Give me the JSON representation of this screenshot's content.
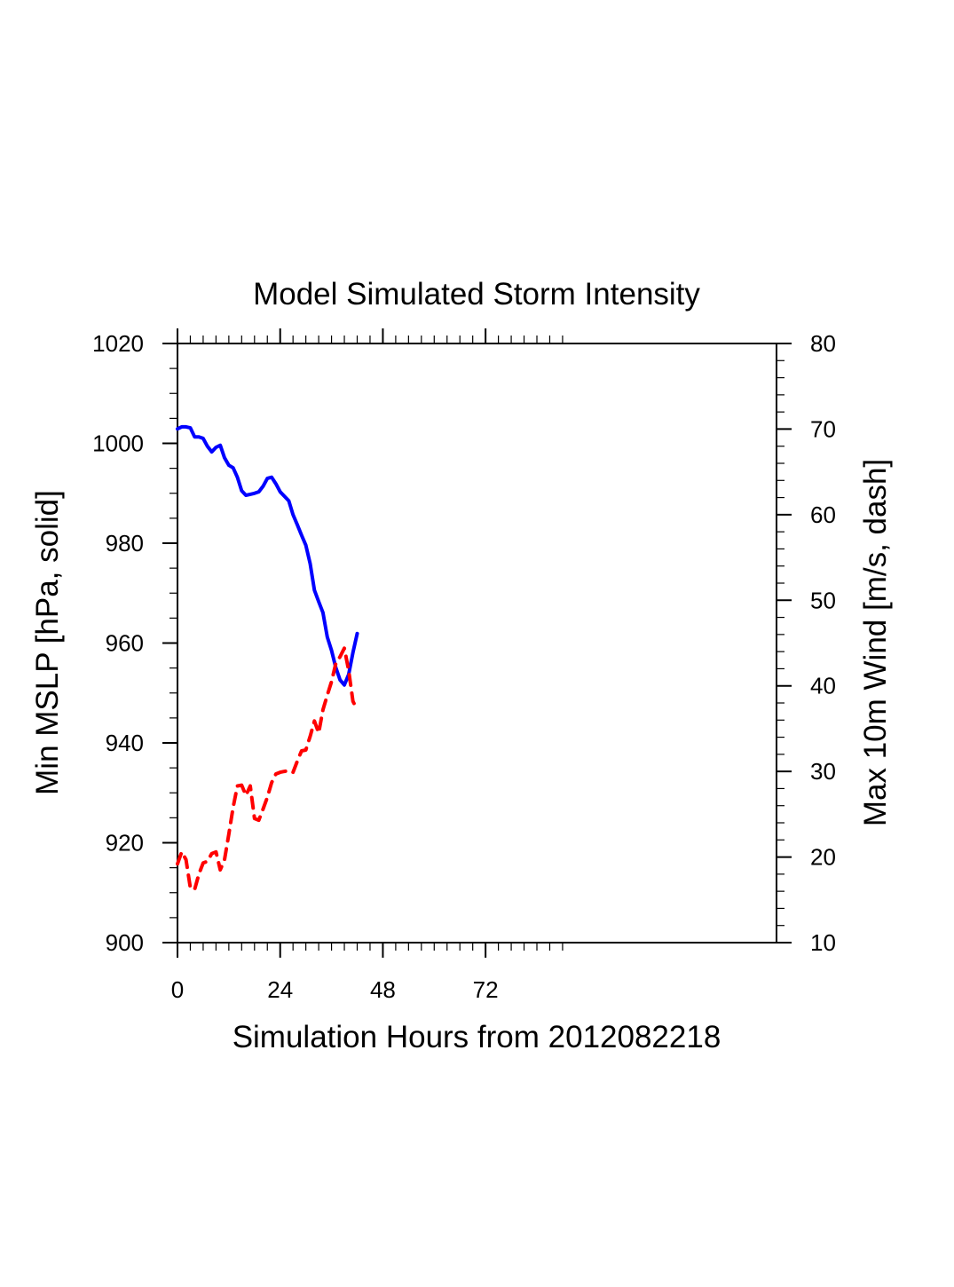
{
  "chart_data": {
    "type": "line",
    "title": "Model Simulated Storm Intensity",
    "xlabel": "Simulation Hours from 2012082218",
    "ylabel_left": "Min MSLP  [hPa, solid]",
    "ylabel_right": "Max 10m Wind  [m/s, dash]",
    "xlim": [
      0,
      140
    ],
    "ylim_left": [
      900,
      1020
    ],
    "ylim_right": [
      10,
      80
    ],
    "x_major_ticks": [
      0,
      24,
      48,
      72
    ],
    "x_tick_labels": [
      "0",
      "24",
      "48",
      "72"
    ],
    "x_minor_step": 3,
    "x_minor_max": 90,
    "y_left_ticks": [
      900,
      920,
      940,
      960,
      980,
      1000,
      1020
    ],
    "y_left_tick_labels": [
      "900",
      "920",
      "940",
      "960",
      "980",
      "1000",
      "1020"
    ],
    "y_left_minor_step": 5,
    "y_right_ticks": [
      10,
      20,
      30,
      40,
      50,
      60,
      70,
      80
    ],
    "y_right_tick_labels": [
      "10",
      "20",
      "30",
      "40",
      "50",
      "60",
      "70",
      "80"
    ],
    "y_right_minor_step": 2,
    "grid": false,
    "legend": "none",
    "x": [
      0,
      1,
      2,
      3,
      4,
      5,
      6,
      7,
      8,
      9,
      10,
      11,
      12,
      13,
      14,
      15,
      16,
      17,
      18,
      19,
      20,
      21,
      22,
      23,
      24,
      25,
      26,
      27,
      28,
      29,
      30,
      31,
      32,
      33,
      34,
      35,
      36,
      37,
      38,
      39,
      40,
      41,
      42
    ],
    "series": [
      {
        "name": "Min MSLP",
        "axis": "left",
        "style": "solid",
        "color": "#0000ff",
        "values": [
          1002.9,
          1003.3,
          1003.3,
          1003.1,
          1001.3,
          1001.3,
          1001.0,
          999.4,
          998.3,
          999.2,
          999.6,
          997.1,
          995.6,
          995.1,
          993.2,
          990.5,
          989.6,
          989.8,
          990.0,
          990.3,
          991.4,
          993.0,
          993.2,
          991.9,
          990.3,
          989.4,
          988.5,
          985.7,
          983.7,
          981.6,
          979.6,
          975.9,
          970.6,
          968.3,
          966.1,
          961.2,
          958.5,
          955.1,
          952.6,
          951.6,
          953.7,
          958.1,
          961.9
        ]
      },
      {
        "name": "Max 10m Wind",
        "axis": "right",
        "style": "dash",
        "color": "#ff0000",
        "values": [
          19.2,
          20.6,
          19.7,
          16.4,
          16.2,
          18.0,
          19.3,
          19.5,
          20.4,
          20.6,
          18.5,
          19.7,
          22.7,
          25.8,
          28.3,
          28.4,
          27.2,
          28.3,
          24.5,
          24.3,
          25.6,
          27.0,
          28.7,
          29.7,
          29.9,
          30.0,
          30.1,
          29.9,
          31.2,
          32.4,
          32.5,
          34.1,
          35.9,
          34.5,
          37.2,
          38.9,
          40.5,
          42.6,
          43.4,
          44.4,
          41.8,
          38.2,
          37.2
        ]
      }
    ]
  }
}
